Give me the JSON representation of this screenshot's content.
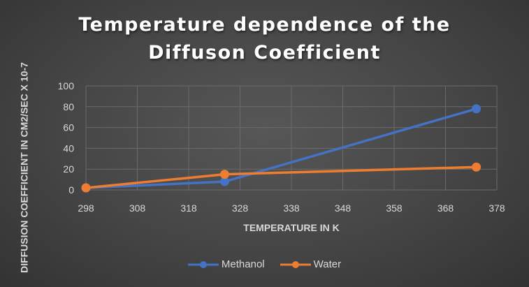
{
  "chart_data": {
    "type": "line",
    "title": "Temperature dependence of the Diffuson Coefficient",
    "title_lines": [
      "Temperature dependence of the",
      "Diffuson Coefficient"
    ],
    "xlabel": "TEMPERATURE IN K",
    "ylabel": "DIFFUSION COEFFICIENT IN CM2/SEC X 10-7",
    "xlim": [
      298,
      378
    ],
    "ylim": [
      0,
      100
    ],
    "xticks": [
      298,
      308,
      318,
      328,
      338,
      348,
      358,
      368,
      378
    ],
    "yticks": [
      0,
      20,
      40,
      60,
      80,
      100
    ],
    "grid": true,
    "legend_position": "bottom",
    "series": [
      {
        "name": "Methanol",
        "color": "#4472C4",
        "x": [
          298,
          325,
          374
        ],
        "y": [
          2,
          8,
          78
        ]
      },
      {
        "name": "Water",
        "color": "#ED7D31",
        "x": [
          298,
          325,
          374
        ],
        "y": [
          2,
          15,
          22
        ]
      }
    ]
  }
}
